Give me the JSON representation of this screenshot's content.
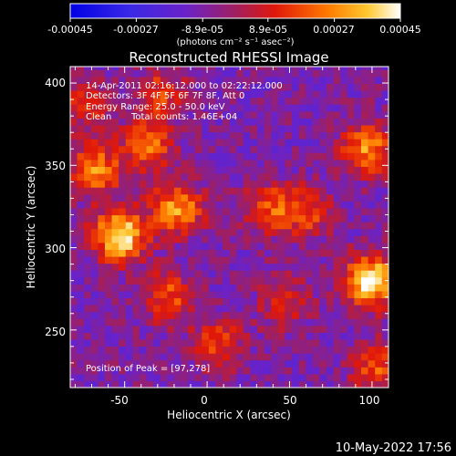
{
  "chart_data": {
    "type": "heatmap",
    "title": "Reconstructed RHESSI Image",
    "xlabel": "Heliocentric X (arcsec)",
    "ylabel": "Heliocentric Y (arcsec)",
    "xlim": [
      -83,
      110
    ],
    "ylim": [
      215,
      410
    ],
    "x_ticks": [
      -50,
      0,
      50,
      100
    ],
    "y_ticks": [
      250,
      300,
      350,
      400
    ],
    "colorbar": {
      "ticks": [
        "-0.00045",
        "-0.00027",
        "-8.9e-05",
        "8.9e-05",
        "0.00027",
        "0.00045"
      ],
      "tick_values": [
        -0.00045,
        -0.00027,
        -8.9e-05,
        8.9e-05,
        0.00027,
        0.00045
      ],
      "range": [
        -0.00045,
        0.00045
      ],
      "units": "(photons cm⁻² s⁻¹ asec⁻²)"
    },
    "annotations": {
      "time_range": "14-Apr-2011 02:16:12.000 to 02:22:12.000",
      "detectors": "Detectors: 3F 4F 5F 6F 7F 8F, Att 0",
      "energy": "Energy Range: 25.0 - 50.0 keV",
      "method": "Clean",
      "counts": "Total counts: 1.46E+04",
      "peak": "Position of Peak = [97,278]"
    },
    "peak": [
      97,
      278
    ],
    "hotspots": [
      {
        "x": -55,
        "y": 305,
        "value": 0.00045
      },
      {
        "x": 97,
        "y": 278,
        "value": 0.00045
      },
      {
        "x": -20,
        "y": 322,
        "value": 0.0003
      },
      {
        "x": 95,
        "y": 358,
        "value": 0.00027
      },
      {
        "x": -70,
        "y": 345,
        "value": 0.00025
      },
      {
        "x": -38,
        "y": 360,
        "value": 0.00022
      },
      {
        "x": -25,
        "y": 268,
        "value": 0.00018
      },
      {
        "x": 35,
        "y": 322,
        "value": 0.00018
      },
      {
        "x": 58,
        "y": 320,
        "value": 0.00016
      },
      {
        "x": 5,
        "y": 240,
        "value": 0.00015
      },
      {
        "x": 100,
        "y": 225,
        "value": 0.00018
      },
      {
        "x": -30,
        "y": 392,
        "value": 0.00014
      },
      {
        "x": 45,
        "y": 265,
        "value": 0.0001
      },
      {
        "x": -75,
        "y": 385,
        "value": 0.00012
      }
    ],
    "background_level": -8.9e-05
  },
  "footer": {
    "timestamp": "10-May-2022 17:56"
  }
}
